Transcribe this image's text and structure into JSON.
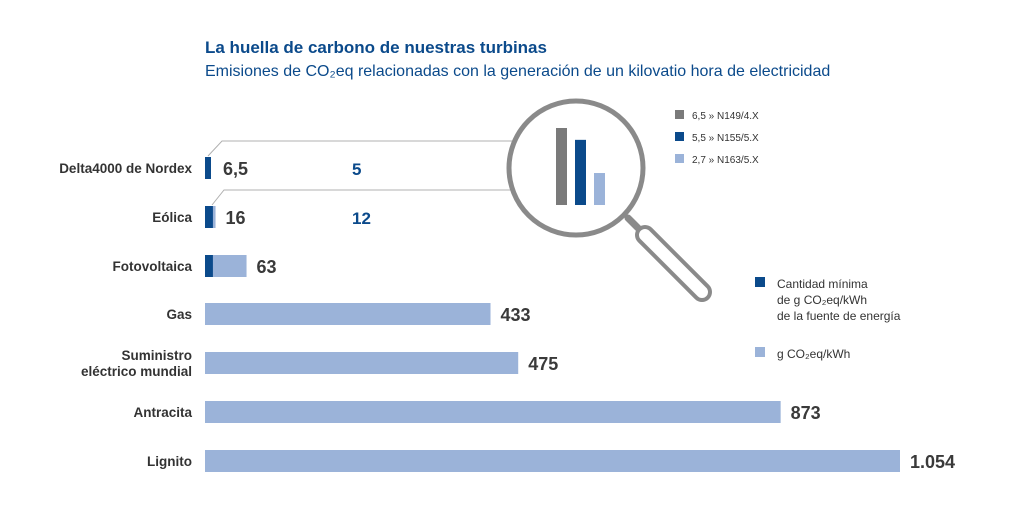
{
  "header": {
    "title": "La huella de carbono de nuestras turbinas",
    "subtitle": "Emisiones de CO₂eq relacionadas con la generación de un kilovatio hora de electricidad"
  },
  "colors": {
    "dark": "#0b4a8b",
    "light": "#9bb3d9",
    "gray": "#7a7a7a",
    "title": "#0b4a8b"
  },
  "chart_data": {
    "type": "bar",
    "orientation": "horizontal",
    "categories": [
      "Delta4000 de Nordex",
      "Eólica",
      "Fotovoltaica",
      "Gas",
      "Suministro eléctrico mundial",
      "Antracita",
      "Lignito"
    ],
    "category_lines": [
      [
        "Delta4000 de Nordex"
      ],
      [
        "Eólica"
      ],
      [
        "Fotovoltaica"
      ],
      [
        "Gas"
      ],
      [
        "Suministro",
        "eléctrico mundial"
      ],
      [
        "Antracita"
      ],
      [
        "Lignito"
      ]
    ],
    "series": [
      {
        "name": "Cantidad mínima de g CO₂eq/kWh de la fuente de energía",
        "values": [
          5,
          12,
          12,
          null,
          null,
          null,
          null
        ]
      },
      {
        "name": "g CO₂eq/kWh",
        "values": [
          6.5,
          16,
          63,
          433,
          475,
          873,
          1054
        ]
      }
    ],
    "value_labels": [
      "6,5",
      "16",
      "63",
      "433",
      "475",
      "873",
      "1.054"
    ],
    "min_labels": [
      "5",
      "12",
      "",
      "",
      "",
      "",
      ""
    ],
    "xlim": [
      0,
      1054
    ],
    "grid": false,
    "legend": {
      "position": "right",
      "items": [
        {
          "lines": [
            "Cantidad mínima",
            "de g CO₂eq/kWh",
            "de la fuente de energía"
          ],
          "color": "#0b4a8b"
        },
        {
          "lines": [
            "g CO₂eq/kWh"
          ],
          "color": "#9bb3d9"
        }
      ]
    },
    "magnifier": {
      "items": [
        {
          "label": "6,5 » N149/4.X",
          "value": 6.5,
          "color": "#7a7a7a"
        },
        {
          "label": "5,5 » N155/5.X",
          "value": 5.5,
          "color": "#0b4a8b"
        },
        {
          "label": "2,7 » N163/5.X",
          "value": 2.7,
          "color": "#9bb3d9"
        }
      ]
    }
  }
}
